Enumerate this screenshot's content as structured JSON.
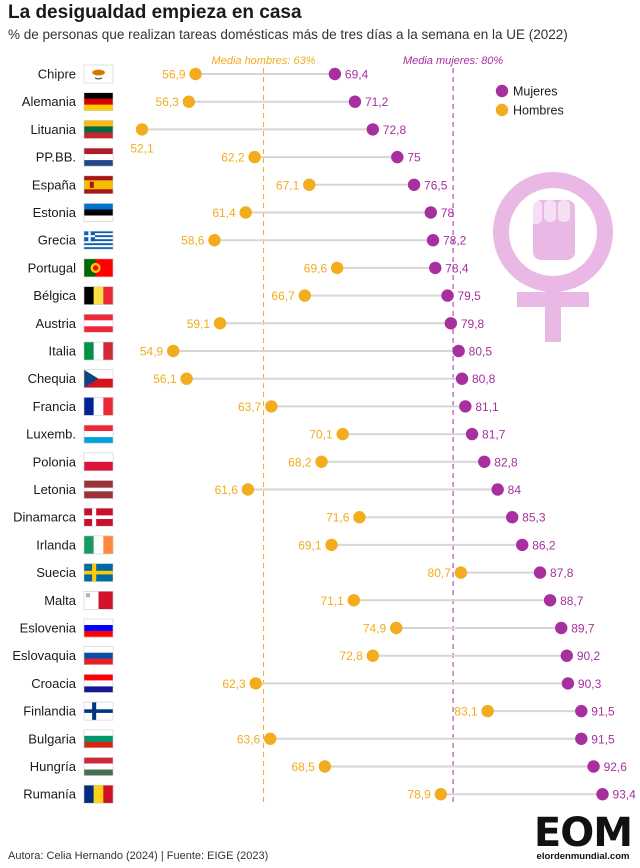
{
  "header": {
    "title": "La desigualdad empieza en casa",
    "subtitle": "% de personas que realizan tareas domésticas más de tres días a la semana en la UE (2022)"
  },
  "footer": {
    "source": "Autora: Celia Hernando (2024) | Fuente: EIGE (2023)",
    "logo_text": "EOM",
    "logo_url": "elordenmundial.com"
  },
  "colors": {
    "mujeres": "#a8309e",
    "hombres": "#f2ac1e",
    "connector": "#d6d6d6",
    "female_symbol": "#e9b8e4"
  },
  "icons": {
    "decoration": "female-fist-symbol-icon"
  },
  "chart_data": {
    "type": "dot",
    "title": "La desigualdad empieza en casa",
    "subtitle": "% de personas que realizan tareas domésticas más de tres días a la semana en la UE (2022)",
    "legend_position": "top-right",
    "categories": [
      "Chipre",
      "Alemania",
      "Lituania",
      "PP.BB.",
      "España",
      "Estonia",
      "Grecia",
      "Portugal",
      "Bélgica",
      "Austria",
      "Italia",
      "Chequia",
      "Francia",
      "Luxemb.",
      "Polonia",
      "Letonia",
      "Dinamarca",
      "Irlanda",
      "Suecia",
      "Malta",
      "Eslovenia",
      "Eslovaquia",
      "Croacia",
      "Finlandia",
      "Bulgaria",
      "Hungría",
      "Rumanía"
    ],
    "series": [
      {
        "name": "Mujeres",
        "values": [
          69.4,
          71.2,
          72.8,
          75,
          76.5,
          78,
          78.2,
          78.4,
          79.5,
          79.8,
          80.5,
          80.8,
          81.1,
          81.7,
          82.8,
          84,
          85.3,
          86.2,
          87.8,
          88.7,
          89.7,
          90.2,
          90.3,
          91.5,
          91.5,
          92.6,
          93.4
        ],
        "labels": [
          "69,4",
          "71,2",
          "72,8",
          "75",
          "76,5",
          "78",
          "78,2",
          "78,4",
          "79,5",
          "79,8",
          "80,5",
          "80,8",
          "81,1",
          "81,7",
          "82,8",
          "84",
          "85,3",
          "86,2",
          "87,8",
          "88,7",
          "89,7",
          "90,2",
          "90,3",
          "91,5",
          "91,5",
          "92,6",
          "93,4"
        ]
      },
      {
        "name": "Hombres",
        "values": [
          56.9,
          56.3,
          52.1,
          62.2,
          67.1,
          61.4,
          58.6,
          69.6,
          66.7,
          59.1,
          54.9,
          56.1,
          63.7,
          70.1,
          68.2,
          61.6,
          71.6,
          69.1,
          80.7,
          71.1,
          74.9,
          72.8,
          62.3,
          83.1,
          63.6,
          68.5,
          78.9
        ],
        "labels": [
          "56,9",
          "56,3",
          "52,1",
          "62,2",
          "67,1",
          "61,4",
          "58,6",
          "69,6",
          "66,7",
          "59,1",
          "54,9",
          "56,1",
          "63,7",
          "70,1",
          "68,2",
          "61,6",
          "71,6",
          "69,1",
          "80,7",
          "71,1",
          "74,9",
          "72,8",
          "62,3",
          "83,1",
          "63,6",
          "68,5",
          "78,9"
        ]
      }
    ],
    "reference_lines": [
      {
        "label": "Media hombres: 63%",
        "value": 63,
        "series": "Hombres"
      },
      {
        "label": "Media mujeres: 80%",
        "value": 80,
        "series": "Mujeres"
      }
    ],
    "flags": [
      {
        "type": "cyprus"
      },
      {
        "type": "h",
        "colors": [
          "#000000",
          "#dd0000",
          "#ffce00"
        ]
      },
      {
        "type": "h",
        "colors": [
          "#fdb913",
          "#006a44",
          "#c1272d"
        ]
      },
      {
        "type": "h",
        "colors": [
          "#ae1c28",
          "#ffffff",
          "#21468b"
        ]
      },
      {
        "type": "spain"
      },
      {
        "type": "h",
        "colors": [
          "#0072ce",
          "#000000",
          "#ffffff"
        ]
      },
      {
        "type": "greece"
      },
      {
        "type": "portugal"
      },
      {
        "type": "v",
        "colors": [
          "#000000",
          "#fae042",
          "#ed2939"
        ]
      },
      {
        "type": "h",
        "colors": [
          "#ed2939",
          "#ffffff",
          "#ed2939"
        ]
      },
      {
        "type": "v",
        "colors": [
          "#009246",
          "#ffffff",
          "#ce2b37"
        ]
      },
      {
        "type": "czech"
      },
      {
        "type": "v",
        "colors": [
          "#002395",
          "#ffffff",
          "#ed2939"
        ]
      },
      {
        "type": "h",
        "colors": [
          "#ed2939",
          "#ffffff",
          "#00a1de"
        ]
      },
      {
        "type": "h",
        "colors": [
          "#ffffff",
          "#dc143c"
        ]
      },
      {
        "type": "latvia"
      },
      {
        "type": "nordic",
        "colors": [
          "#c8102e",
          "#ffffff"
        ]
      },
      {
        "type": "v",
        "colors": [
          "#169b62",
          "#ffffff",
          "#ff883e"
        ]
      },
      {
        "type": "nordic",
        "colors": [
          "#006aa7",
          "#fecc00"
        ]
      },
      {
        "type": "malta"
      },
      {
        "type": "h",
        "colors": [
          "#ffffff",
          "#0000ff",
          "#ff0000"
        ]
      },
      {
        "type": "h",
        "colors": [
          "#ffffff",
          "#0b4ea2",
          "#ee1c25"
        ]
      },
      {
        "type": "h",
        "colors": [
          "#ff0000",
          "#ffffff",
          "#171796"
        ]
      },
      {
        "type": "nordic",
        "colors": [
          "#ffffff",
          "#003580"
        ]
      },
      {
        "type": "h",
        "colors": [
          "#ffffff",
          "#00966e",
          "#d62612"
        ]
      },
      {
        "type": "h",
        "colors": [
          "#ce2939",
          "#ffffff",
          "#477050"
        ]
      },
      {
        "type": "v",
        "colors": [
          "#002b7f",
          "#fcd116",
          "#ce1126"
        ]
      }
    ]
  }
}
